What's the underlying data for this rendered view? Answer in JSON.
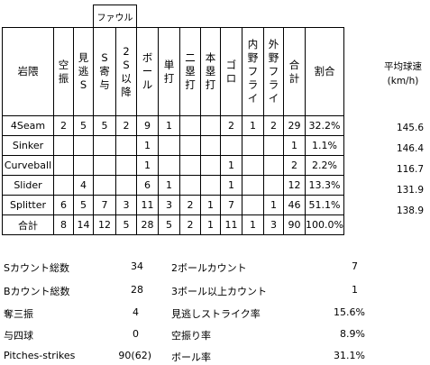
{
  "header": {
    "foul": "ファウル",
    "pitcher": "岩隈",
    "columns": [
      "空振",
      "見逃S",
      "S寄与",
      "2S以降",
      "ボール",
      "単打",
      "二塁打",
      "本塁打",
      "ゴロ",
      "内野フライ",
      "外野フライ",
      "合計",
      "割合"
    ]
  },
  "rows": [
    {
      "pitch": "4Seam",
      "values": [
        "2",
        "5",
        "5",
        "2",
        "9",
        "1",
        "",
        "",
        "2",
        "1",
        "2",
        "29",
        "32.2%"
      ],
      "velocity": "145.6"
    },
    {
      "pitch": "Sinker",
      "values": [
        "",
        "",
        "",
        "",
        "1",
        "",
        "",
        "",
        "",
        "",
        "",
        "1",
        "1.1%"
      ],
      "velocity": "146.4"
    },
    {
      "pitch": "Curveball",
      "values": [
        "",
        "",
        "",
        "",
        "1",
        "",
        "",
        "",
        "1",
        "",
        "",
        "2",
        "2.2%"
      ],
      "velocity": "116.7"
    },
    {
      "pitch": "Slider",
      "values": [
        "",
        "4",
        "",
        "",
        "6",
        "1",
        "",
        "",
        "1",
        "",
        "",
        "12",
        "13.3%"
      ],
      "velocity": "131.9"
    },
    {
      "pitch": "Splitter",
      "values": [
        "6",
        "5",
        "7",
        "3",
        "11",
        "3",
        "2",
        "1",
        "7",
        "",
        "1",
        "46",
        "51.1%"
      ],
      "velocity": "138.9"
    },
    {
      "pitch": "合計",
      "values": [
        "8",
        "14",
        "12",
        "5",
        "28",
        "5",
        "2",
        "1",
        "11",
        "1",
        "3",
        "90",
        "100.0%"
      ],
      "velocity": ""
    }
  ],
  "velocity_header": {
    "line1": "平均球速",
    "line2": "(km/h)"
  },
  "summary_left": [
    {
      "label": "Sカウント総数",
      "value": "34"
    },
    {
      "label": "Bカウント総数",
      "value": "28"
    },
    {
      "label": "奪三振",
      "value": "4"
    },
    {
      "label": "与四球",
      "value": "0"
    },
    {
      "label": "Pitches-strikes",
      "value": "90(62)"
    }
  ],
  "summary_right": [
    {
      "label": "2ボールカウント",
      "value": "7"
    },
    {
      "label": "3ボール以上カウント",
      "value": "1"
    },
    {
      "label": "見逃しストライク率",
      "value": "15.6%"
    },
    {
      "label": "空振り率",
      "value": "8.9%"
    },
    {
      "label": "ボール率",
      "value": "31.1%"
    }
  ]
}
